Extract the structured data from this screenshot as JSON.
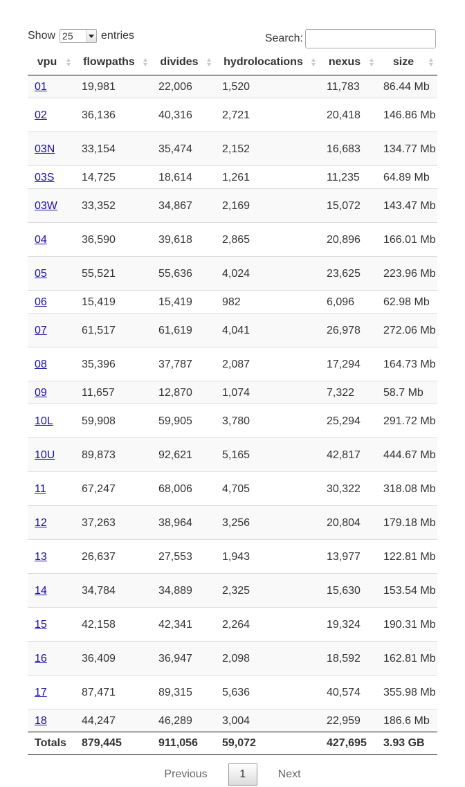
{
  "length_menu": {
    "prefix": "Show",
    "value": "25",
    "suffix": "entries"
  },
  "search": {
    "label": "Search:",
    "value": ""
  },
  "columns": [
    "vpu",
    "flowpaths",
    "divides",
    "hydrolocations",
    "nexus",
    "size"
  ],
  "rows": [
    {
      "vpu": "01",
      "flowpaths": "19,981",
      "divides": "22,006",
      "hydrolocations": "1,520",
      "nexus": "11,783",
      "size": "86.44 Mb"
    },
    {
      "vpu": "02",
      "flowpaths": "36,136",
      "divides": "40,316",
      "hydrolocations": "2,721",
      "nexus": "20,418",
      "size": "146.86 Mb"
    },
    {
      "vpu": "03N",
      "flowpaths": "33,154",
      "divides": "35,474",
      "hydrolocations": "2,152",
      "nexus": "16,683",
      "size": "134.77 Mb"
    },
    {
      "vpu": "03S",
      "flowpaths": "14,725",
      "divides": "18,614",
      "hydrolocations": "1,261",
      "nexus": "11,235",
      "size": "64.89 Mb"
    },
    {
      "vpu": "03W",
      "flowpaths": "33,352",
      "divides": "34,867",
      "hydrolocations": "2,169",
      "nexus": "15,072",
      "size": "143.47 Mb"
    },
    {
      "vpu": "04",
      "flowpaths": "36,590",
      "divides": "39,618",
      "hydrolocations": "2,865",
      "nexus": "20,896",
      "size": "166.01 Mb"
    },
    {
      "vpu": "05",
      "flowpaths": "55,521",
      "divides": "55,636",
      "hydrolocations": "4,024",
      "nexus": "23,625",
      "size": "223.96 Mb"
    },
    {
      "vpu": "06",
      "flowpaths": "15,419",
      "divides": "15,419",
      "hydrolocations": "982",
      "nexus": "6,096",
      "size": "62.98 Mb"
    },
    {
      "vpu": "07",
      "flowpaths": "61,517",
      "divides": "61,619",
      "hydrolocations": "4,041",
      "nexus": "26,978",
      "size": "272.06 Mb"
    },
    {
      "vpu": "08",
      "flowpaths": "35,396",
      "divides": "37,787",
      "hydrolocations": "2,087",
      "nexus": "17,294",
      "size": "164.73 Mb"
    },
    {
      "vpu": "09",
      "flowpaths": "11,657",
      "divides": "12,870",
      "hydrolocations": "1,074",
      "nexus": "7,322",
      "size": "58.7 Mb"
    },
    {
      "vpu": "10L",
      "flowpaths": "59,908",
      "divides": "59,905",
      "hydrolocations": "3,780",
      "nexus": "25,294",
      "size": "291.72 Mb"
    },
    {
      "vpu": "10U",
      "flowpaths": "89,873",
      "divides": "92,621",
      "hydrolocations": "5,165",
      "nexus": "42,817",
      "size": "444.67 Mb"
    },
    {
      "vpu": "11",
      "flowpaths": "67,247",
      "divides": "68,006",
      "hydrolocations": "4,705",
      "nexus": "30,322",
      "size": "318.08 Mb"
    },
    {
      "vpu": "12",
      "flowpaths": "37,263",
      "divides": "38,964",
      "hydrolocations": "3,256",
      "nexus": "20,804",
      "size": "179.18 Mb"
    },
    {
      "vpu": "13",
      "flowpaths": "26,637",
      "divides": "27,553",
      "hydrolocations": "1,943",
      "nexus": "13,977",
      "size": "122.81 Mb"
    },
    {
      "vpu": "14",
      "flowpaths": "34,784",
      "divides": "34,889",
      "hydrolocations": "2,325",
      "nexus": "15,630",
      "size": "153.54 Mb"
    },
    {
      "vpu": "15",
      "flowpaths": "42,158",
      "divides": "42,341",
      "hydrolocations": "2,264",
      "nexus": "19,324",
      "size": "190.31 Mb"
    },
    {
      "vpu": "16",
      "flowpaths": "36,409",
      "divides": "36,947",
      "hydrolocations": "2,098",
      "nexus": "18,592",
      "size": "162.81 Mb"
    },
    {
      "vpu": "17",
      "flowpaths": "87,471",
      "divides": "89,315",
      "hydrolocations": "5,636",
      "nexus": "40,574",
      "size": "355.98 Mb"
    },
    {
      "vpu": "18",
      "flowpaths": "44,247",
      "divides": "46,289",
      "hydrolocations": "3,004",
      "nexus": "22,959",
      "size": "186.6 Mb"
    }
  ],
  "totals": {
    "vpu": "Totals",
    "flowpaths": "879,445",
    "divides": "911,056",
    "hydrolocations": "59,072",
    "nexus": "427,695",
    "size": "3.93 GB"
  },
  "pagination": {
    "previous": "Previous",
    "current_page": "1",
    "next": "Next"
  }
}
